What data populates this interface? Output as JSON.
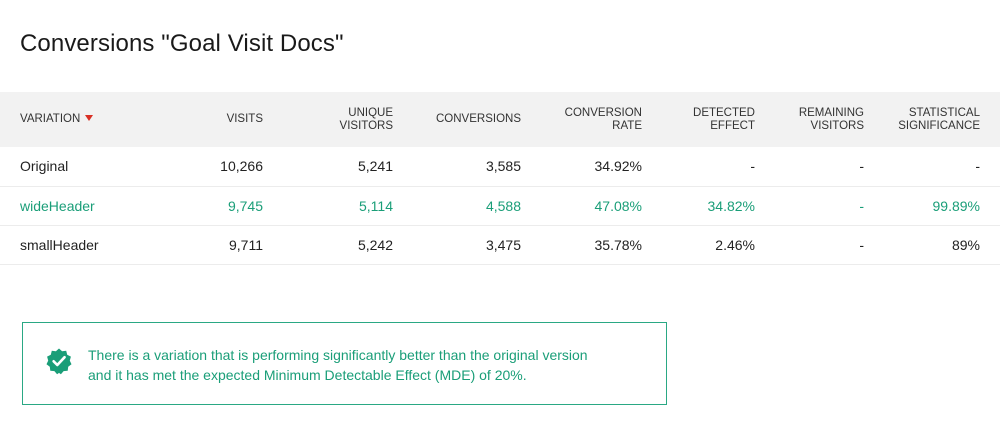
{
  "page": {
    "title": "Conversions \"Goal Visit Docs\""
  },
  "table": {
    "headers": {
      "variation": "VARIATION",
      "visits": "VISITS",
      "unique_visitors": [
        "UNIQUE",
        "VISITORS"
      ],
      "conversions": "CONVERSIONS",
      "conversion_rate": [
        "CONVERSION",
        "RATE"
      ],
      "detected_effect": [
        "DETECTED",
        "EFFECT"
      ],
      "remaining_visitors": [
        "REMAINING",
        "VISITORS"
      ],
      "statistical_significance": [
        "STATISTICAL",
        "SIGNIFICANCE"
      ]
    },
    "sort": {
      "column": "variation",
      "direction": "descending",
      "arrow_color": "#d93025"
    },
    "rows": [
      {
        "variation": "Original",
        "visits": "10,266",
        "unique_visitors": "5,241",
        "conversions": "3,585",
        "conversion_rate": "34.92%",
        "detected_effect": "-",
        "remaining_visitors": "-",
        "statistical_significance": "-",
        "highlight": false
      },
      {
        "variation": "wideHeader",
        "visits": "9,745",
        "unique_visitors": "5,114",
        "conversions": "4,588",
        "conversion_rate": "47.08%",
        "detected_effect": "34.82%",
        "remaining_visitors": "-",
        "statistical_significance": "99.89%",
        "highlight": true
      },
      {
        "variation": "smallHeader",
        "visits": "9,711",
        "unique_visitors": "5,242",
        "conversions": "3,475",
        "conversion_rate": "35.78%",
        "detected_effect": "2.46%",
        "remaining_visitors": "-",
        "statistical_significance": "89%",
        "highlight": false
      }
    ]
  },
  "alert": {
    "icon": "verified-badge-icon",
    "lines": [
      "There is a variation that is performing significantly better than the original version",
      "and it has met the expected Minimum Detectable Effect (MDE) of 20%."
    ]
  },
  "colors": {
    "success": "#1a9e78",
    "success_border": "#2aa884",
    "header_bg": "#f2f2f2",
    "sort_arrow": "#d93025"
  }
}
